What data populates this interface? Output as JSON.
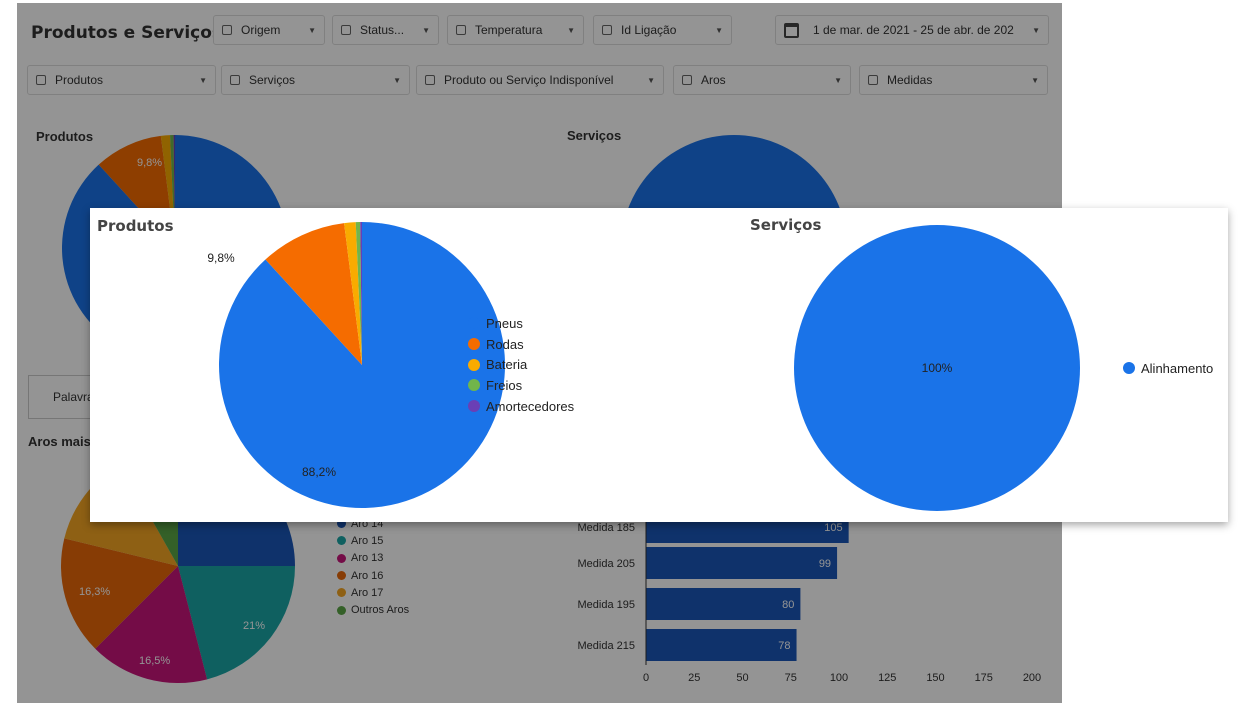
{
  "background": {
    "title": "Produtos e Serviços",
    "filters_row1": [
      {
        "label": "Origem"
      },
      {
        "label": "Status..."
      },
      {
        "label": "Temperatura"
      },
      {
        "label": "Id Ligação"
      }
    ],
    "date_range": "1 de mar. de 2021 - 25 de abr. de 202",
    "filters_row2": [
      {
        "label": "Produtos"
      },
      {
        "label": "Serviços"
      },
      {
        "label": "Produto ou Serviço Indisponível"
      },
      {
        "label": "Aros"
      },
      {
        "label": "Medidas"
      }
    ],
    "produtos_title": "Produtos",
    "produtos_label": "9,8%",
    "servicos_title": "Serviços",
    "palavra_label": "Palavra",
    "aros_title": "Aros mais",
    "aros_legend": [
      "Aro 14",
      "Aro 15",
      "Aro 13",
      "Aro 16",
      "Aro 17",
      "Outros Aros"
    ],
    "aros_legend_colors": [
      "#1a56b8",
      "#1aa6a6",
      "#c8157a",
      "#e8680a",
      "#f5a623",
      "#5aa646"
    ],
    "aros_slice_labels": [
      "16,3%",
      "21%",
      "16,5%"
    ],
    "bar_label_partial": "Medida 185",
    "bar_value_partial": "105"
  },
  "chart_data": [
    {
      "type": "pie",
      "title": "Produtos",
      "categories": [
        "Pneus",
        "Rodas",
        "Bateria",
        "Freios",
        "Amortecedores"
      ],
      "values": [
        88.2,
        9.8,
        1.3,
        0.5,
        0.2
      ],
      "labels": [
        "88,2%",
        "9,8%",
        "",
        "",
        ""
      ],
      "colors": [
        "#1a73e8",
        "#f56c00",
        "#f9ab00",
        "#71b54b",
        "#6a3fb5"
      ],
      "legend": "right"
    },
    {
      "type": "pie",
      "title": "Serviços",
      "categories": [
        "Alinhamento"
      ],
      "values": [
        100
      ],
      "labels": [
        "100%"
      ],
      "colors": [
        "#1a73e8"
      ],
      "legend": "right"
    },
    {
      "type": "pie",
      "title": "Aros mais",
      "categories": [
        "Aro 14",
        "Aro 15",
        "Aro 13",
        "Aro 16",
        "Aro 17",
        "Outros Aros"
      ],
      "values": [
        25,
        21,
        16.5,
        16.3,
        13,
        8.2
      ],
      "labels": [
        "",
        "21%",
        "16,5%",
        "16,3%",
        "",
        ""
      ],
      "colors": [
        "#1a56b8",
        "#1aa6a6",
        "#c8157a",
        "#e8680a",
        "#f5a623",
        "#5aa646"
      ]
    },
    {
      "type": "bar",
      "orientation": "horizontal",
      "categories": [
        "Medida 185",
        "Medida 205",
        "Medida 195",
        "Medida 215"
      ],
      "values": [
        105,
        99,
        80,
        78
      ],
      "xlim": [
        0,
        200
      ],
      "xticks": [
        "0",
        "25",
        "50",
        "75",
        "100",
        "125",
        "150",
        "175",
        "200"
      ],
      "color": "#1a56b8"
    }
  ]
}
